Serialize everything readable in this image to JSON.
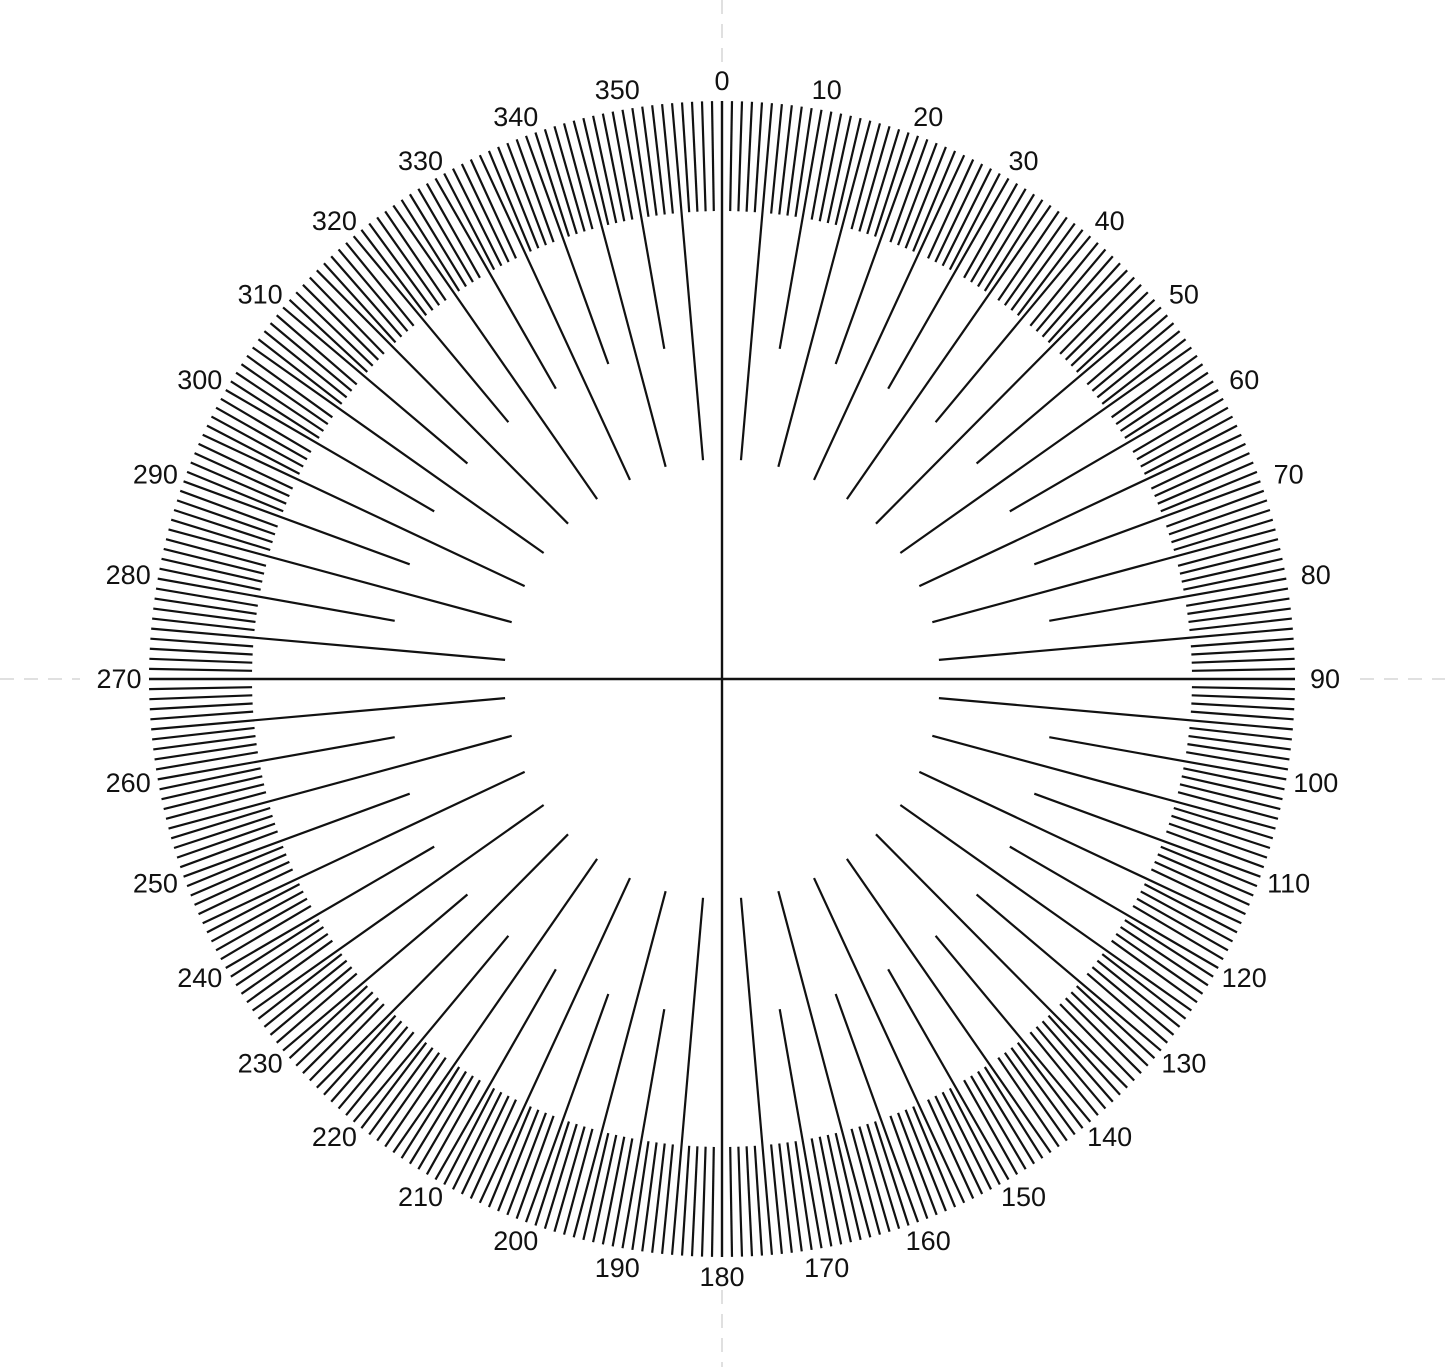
{
  "dial": {
    "line_color": "#111111",
    "guide_color": "#d6d6d6",
    "background": "#ffffff",
    "degree_labels": [
      "0",
      "10",
      "20",
      "30",
      "40",
      "50",
      "60",
      "70",
      "80",
      "90",
      "100",
      "110",
      "120",
      "130",
      "140",
      "150",
      "160",
      "170",
      "180",
      "190",
      "200",
      "210",
      "220",
      "230",
      "240",
      "250",
      "260",
      "270",
      "280",
      "290",
      "300",
      "310",
      "320",
      "330",
      "340",
      "350"
    ]
  }
}
